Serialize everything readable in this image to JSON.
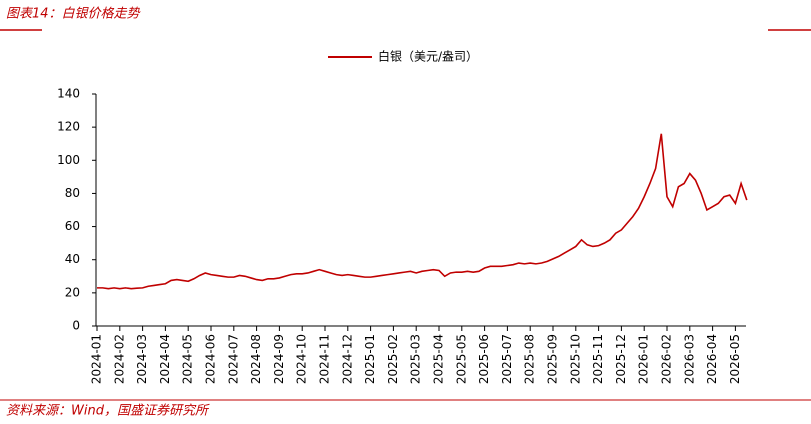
{
  "chart_data": {
    "type": "line",
    "title": "图表14：白银价格走势",
    "source": "资料来源：Wind，国盛证券研究所",
    "categories": [
      "2024-01",
      null,
      null,
      null,
      "2024-02",
      null,
      null,
      null,
      "2024-03",
      null,
      null,
      null,
      "2024-04",
      null,
      null,
      null,
      "2024-05",
      null,
      null,
      null,
      "2024-06",
      null,
      null,
      null,
      "2024-07",
      null,
      null,
      null,
      "2024-08",
      null,
      null,
      null,
      "2024-09",
      null,
      null,
      null,
      "2024-10",
      null,
      null,
      null,
      "2024-11",
      null,
      null,
      null,
      "2024-12",
      null,
      null,
      null,
      "2025-01",
      null,
      null,
      null,
      "2025-02",
      null,
      null,
      null,
      "2025-03",
      null,
      null,
      null,
      "2025-04",
      null,
      null,
      null,
      "2025-05",
      null,
      null,
      null,
      "2025-06",
      null,
      null,
      null,
      "2025-07",
      null,
      null,
      null,
      "2025-08",
      null,
      null,
      null,
      "2025-09",
      null,
      null,
      null,
      "2025-10",
      null,
      null,
      null,
      "2025-11",
      null,
      null,
      null,
      "2025-12",
      null,
      null,
      null,
      "2026-01",
      null,
      null,
      null,
      "2026-02",
      null,
      null,
      null,
      "2026-03",
      null,
      null,
      null,
      "2026-04",
      null,
      null,
      null,
      "2026-05",
      null,
      null
    ],
    "series": [
      {
        "name": "白银（美元/盎司）",
        "color": "#c00000",
        "values": [
          23,
          23,
          22.5,
          23,
          22.5,
          23,
          22.5,
          22.8,
          23,
          24,
          24.5,
          25,
          25.5,
          27.5,
          28,
          27.5,
          27,
          28.5,
          30.5,
          32,
          31,
          30.5,
          30,
          29.5,
          29.5,
          30.5,
          30,
          29,
          28,
          27.5,
          28.5,
          28.5,
          29,
          30,
          31,
          31.5,
          31.5,
          32,
          33,
          34,
          33,
          32,
          31,
          30.5,
          31,
          30.5,
          30,
          29.5,
          29.5,
          30,
          30.5,
          31,
          31.5,
          32,
          32.5,
          33,
          32,
          33,
          33.5,
          34,
          33.5,
          30,
          32,
          32.5,
          32.5,
          33,
          32.5,
          33,
          35,
          36,
          36,
          36,
          36.5,
          37,
          38,
          37.5,
          38,
          37.5,
          38,
          39,
          40.5,
          42,
          44,
          46,
          48,
          52,
          49,
          48,
          48.5,
          50,
          52,
          56,
          58,
          62,
          66,
          71,
          78,
          86,
          95,
          116,
          78,
          72,
          84,
          86,
          92,
          88,
          80,
          70,
          72,
          74,
          78,
          79,
          74,
          86,
          76
        ]
      }
    ],
    "ylim": [
      0,
      140
    ],
    "yticks": [
      0,
      20,
      40,
      60,
      80,
      100,
      120,
      140
    ]
  }
}
